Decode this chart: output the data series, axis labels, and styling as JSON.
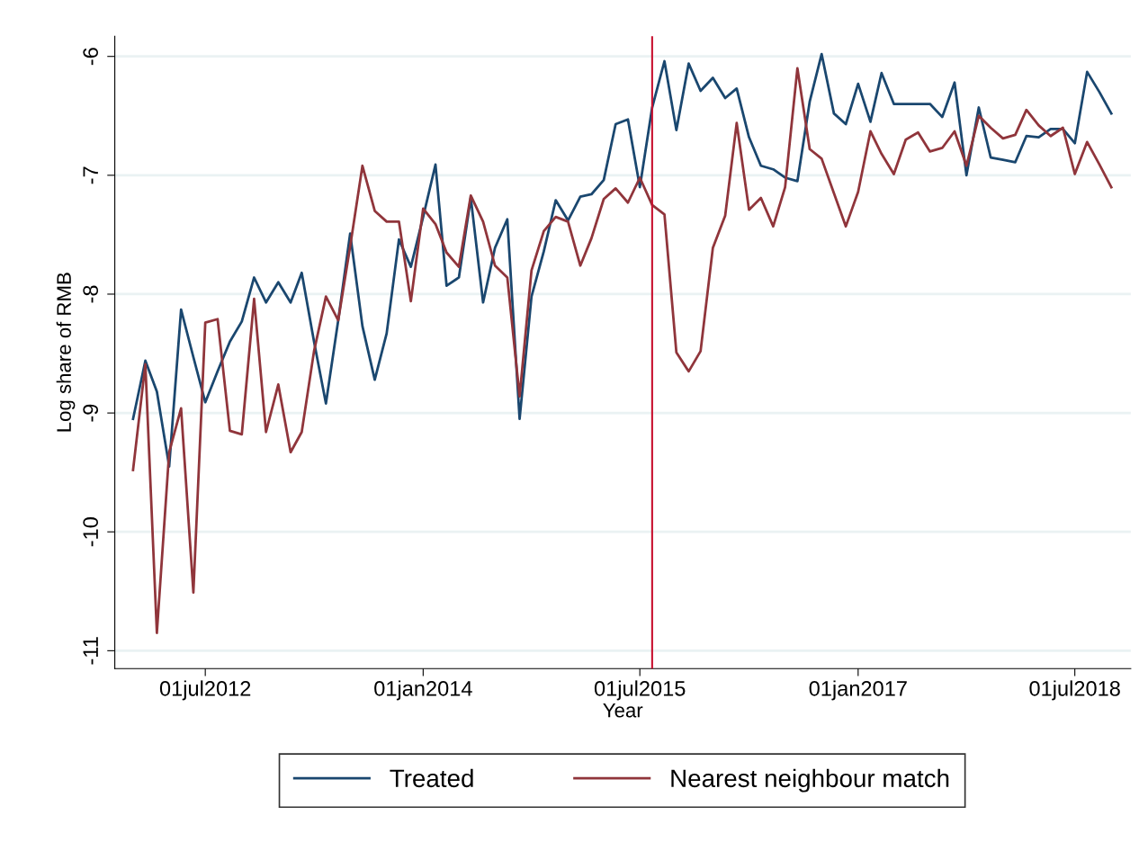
{
  "chart_data": {
    "type": "line",
    "xlabel": "Year",
    "ylabel": "Log share of RMB",
    "x": [
      "2012-01",
      "2012-02",
      "2012-03",
      "2012-04",
      "2012-05",
      "2012-06",
      "2012-07",
      "2012-08",
      "2012-09",
      "2012-10",
      "2012-11",
      "2012-12",
      "2013-01",
      "2013-02",
      "2013-03",
      "2013-04",
      "2013-05",
      "2013-06",
      "2013-07",
      "2013-08",
      "2013-09",
      "2013-10",
      "2013-11",
      "2013-12",
      "2014-01",
      "2014-02",
      "2014-03",
      "2014-04",
      "2014-05",
      "2014-06",
      "2014-07",
      "2014-08",
      "2014-09",
      "2014-10",
      "2014-11",
      "2014-12",
      "2015-01",
      "2015-02",
      "2015-03",
      "2015-04",
      "2015-05",
      "2015-06",
      "2015-07",
      "2015-08",
      "2015-09",
      "2015-10",
      "2015-11",
      "2015-12",
      "2016-01",
      "2016-02",
      "2016-03",
      "2016-04",
      "2016-05",
      "2016-06",
      "2016-07",
      "2016-08",
      "2016-09",
      "2016-10",
      "2016-11",
      "2016-12",
      "2017-01",
      "2017-02",
      "2017-03",
      "2017-04",
      "2017-05",
      "2017-06",
      "2017-07",
      "2017-08",
      "2017-09",
      "2017-10",
      "2017-11",
      "2017-12",
      "2018-01",
      "2018-02",
      "2018-03",
      "2018-04",
      "2018-05",
      "2018-06",
      "2018-07",
      "2018-08",
      "2018-09",
      "2018-10"
    ],
    "series": [
      {
        "name": "Treated",
        "color": "#1a476f",
        "values": [
          -9.05,
          -8.56,
          -8.82,
          -9.45,
          -8.13,
          -8.53,
          -8.91,
          -8.65,
          -8.4,
          -8.23,
          -7.86,
          -8.07,
          -7.9,
          -8.07,
          -7.82,
          -8.4,
          -8.92,
          -8.22,
          -7.49,
          -8.27,
          -8.72,
          -8.33,
          -7.54,
          -7.77,
          -7.35,
          -6.91,
          -7.93,
          -7.86,
          -7.19,
          -8.07,
          -7.61,
          -7.37,
          -9.05,
          -8.02,
          -7.64,
          -7.21,
          -7.38,
          -7.18,
          -7.16,
          -7.04,
          -6.57,
          -6.53,
          -7.1,
          -6.43,
          -6.04,
          -6.62,
          -6.06,
          -6.29,
          -6.18,
          -6.35,
          -6.27,
          -6.68,
          -6.92,
          -6.95,
          -7.02,
          -7.05,
          -6.38,
          -5.98,
          -6.48,
          -6.57,
          -6.23,
          -6.55,
          -6.14,
          -6.4,
          -6.4,
          -6.4,
          -6.4,
          -6.51,
          -6.22,
          -7.0,
          -6.43,
          -6.85,
          -6.87,
          -6.89,
          -6.67,
          -6.68,
          -6.61,
          -6.61,
          -6.73,
          -6.13,
          -6.3,
          -6.48
        ]
      },
      {
        "name": "Nearest neighbour match",
        "color": "#90353b",
        "values": [
          -9.48,
          -8.59,
          -10.85,
          -9.33,
          -8.96,
          -10.51,
          -8.24,
          -8.21,
          -9.15,
          -9.18,
          -8.04,
          -9.16,
          -8.76,
          -9.33,
          -9.16,
          -8.48,
          -8.02,
          -8.22,
          -7.6,
          -6.92,
          -7.3,
          -7.39,
          -7.39,
          -8.06,
          -7.28,
          -7.41,
          -7.65,
          -7.77,
          -7.17,
          -7.39,
          -7.76,
          -7.86,
          -8.86,
          -7.8,
          -7.47,
          -7.35,
          -7.39,
          -7.76,
          -7.53,
          -7.2,
          -7.11,
          -7.23,
          -7.02,
          -7.25,
          -7.33,
          -8.49,
          -8.65,
          -8.48,
          -7.61,
          -7.34,
          -6.56,
          -7.29,
          -7.19,
          -7.43,
          -7.1,
          -6.1,
          -6.78,
          -6.86,
          -7.15,
          -7.43,
          -7.14,
          -6.63,
          -6.82,
          -6.99,
          -6.7,
          -6.64,
          -6.8,
          -6.77,
          -6.63,
          -6.92,
          -6.5,
          -6.6,
          -6.69,
          -6.66,
          -6.45,
          -6.58,
          -6.67,
          -6.6,
          -6.99,
          -6.72,
          -6.91,
          -7.1
        ]
      }
    ],
    "xlim": [
      "2011-11-16",
      "2018-11-19"
    ],
    "xticks": [
      {
        "value": "2012-07-01",
        "label": "01jul2012"
      },
      {
        "value": "2014-01-01",
        "label": "01jan2014"
      },
      {
        "value": "2015-07-01",
        "label": "01jul2015"
      },
      {
        "value": "2017-01-01",
        "label": "01jan2017"
      },
      {
        "value": "2018-07-01",
        "label": "01jul2018"
      }
    ],
    "ylim": [
      -11.15,
      -5.83
    ],
    "yticks": [
      -11,
      -10,
      -9,
      -8,
      -7,
      -6
    ],
    "ref_lines": [
      {
        "axis": "x",
        "value": "2015-08-01",
        "color": "#c8102e"
      }
    ],
    "grid": "y",
    "legend": "bottom",
    "marker": "none",
    "line_style": "solid"
  }
}
